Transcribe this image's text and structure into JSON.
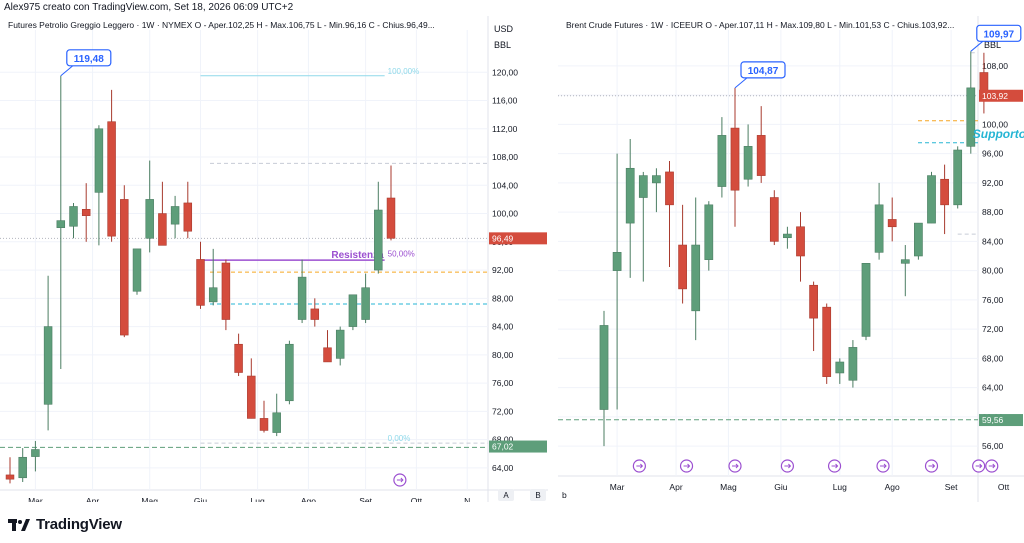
{
  "header": {
    "credit": "Alex975 creato con TradingView.com, Set 18, 2026 06:09 UTC+2"
  },
  "footer": {
    "brand": "TradingView",
    "corner_left": "b",
    "btn_a": "A",
    "btn_b": "B"
  },
  "colors": {
    "up": "#5e9e7a",
    "down": "#d44c3d",
    "resistance": "#9b4fd0",
    "support": "#26b5d4"
  },
  "chart_data": [
    {
      "type": "candlestick",
      "title": "Futures Petrolio Greggio Leggero · 1W · NYMEX",
      "ohlc_label": "O - Aper.102,25  H - Max.106,75  L - Min.96,16  C - Chius.96,49...",
      "currency": "USD",
      "unit": "BBL",
      "ylim": [
        62,
        124
      ],
      "y_ticks": [
        64,
        68,
        72,
        76,
        80,
        84,
        88,
        92,
        96,
        100,
        104,
        108,
        112,
        116,
        120
      ],
      "y_tick_labels": [
        "64,00",
        "68,00",
        "72,00",
        "76,00",
        "80,00",
        "84,00",
        "88,00",
        "92,00",
        "96,00",
        "100,00",
        "104,00",
        "108,00",
        "112,00",
        "116,00",
        "120,00"
      ],
      "x_labels": [
        {
          "i": 2,
          "t": "Mar"
        },
        {
          "i": 6.5,
          "t": "Apr"
        },
        {
          "i": 11,
          "t": "Mag"
        },
        {
          "i": 15,
          "t": "Giu"
        },
        {
          "i": 19.5,
          "t": "Lug"
        },
        {
          "i": 23.5,
          "t": "Ago"
        },
        {
          "i": 28,
          "t": "Set"
        },
        {
          "i": 32,
          "t": "Ott"
        },
        {
          "i": 36,
          "t": "N"
        }
      ],
      "candles": [
        {
          "o": 63.0,
          "h": 65.5,
          "l": 61.8,
          "c": 62.4
        },
        {
          "o": 62.6,
          "h": 66.8,
          "l": 62.0,
          "c": 65.5
        },
        {
          "o": 65.6,
          "h": 67.8,
          "l": 63.5,
          "c": 66.6
        },
        {
          "o": 73.0,
          "h": 91.2,
          "l": 69.3,
          "c": 84.0
        },
        {
          "o": 98.0,
          "h": 119.5,
          "l": 78.0,
          "c": 99.0
        },
        {
          "o": 98.2,
          "h": 101.5,
          "l": 96.5,
          "c": 101.0
        },
        {
          "o": 100.6,
          "h": 104.3,
          "l": 96.0,
          "c": 99.7
        },
        {
          "o": 103.0,
          "h": 112.5,
          "l": 95.5,
          "c": 112.0
        },
        {
          "o": 113.0,
          "h": 117.5,
          "l": 96.0,
          "c": 96.8
        },
        {
          "o": 102.0,
          "h": 104.0,
          "l": 82.5,
          "c": 82.8
        },
        {
          "o": 89.0,
          "h": 95.0,
          "l": 88.5,
          "c": 95.0
        },
        {
          "o": 96.5,
          "h": 107.5,
          "l": 94.5,
          "c": 102.0
        },
        {
          "o": 100.0,
          "h": 104.5,
          "l": 96.0,
          "c": 95.5
        },
        {
          "o": 98.5,
          "h": 102.5,
          "l": 96.5,
          "c": 101.0
        },
        {
          "o": 101.5,
          "h": 104.5,
          "l": 96.5,
          "c": 97.5
        },
        {
          "o": 93.5,
          "h": 96.0,
          "l": 86.5,
          "c": 87.0
        },
        {
          "o": 87.5,
          "h": 95.0,
          "l": 87.0,
          "c": 89.5
        },
        {
          "o": 93.0,
          "h": 93.5,
          "l": 83.5,
          "c": 85.0
        },
        {
          "o": 81.5,
          "h": 83.0,
          "l": 77.0,
          "c": 77.5
        },
        {
          "o": 77.0,
          "h": 79.5,
          "l": 71.0,
          "c": 71.0
        },
        {
          "o": 71.0,
          "h": 73.5,
          "l": 69.0,
          "c": 69.3
        },
        {
          "o": 69.0,
          "h": 74.5,
          "l": 68.5,
          "c": 71.8
        },
        {
          "o": 73.5,
          "h": 82.0,
          "l": 73.0,
          "c": 81.5
        },
        {
          "o": 85.0,
          "h": 93.5,
          "l": 84.5,
          "c": 91.0
        },
        {
          "o": 86.5,
          "h": 88.0,
          "l": 84.0,
          "c": 85.0
        },
        {
          "o": 81.0,
          "h": 83.5,
          "l": 79.0,
          "c": 79.0
        },
        {
          "o": 79.5,
          "h": 84.0,
          "l": 78.5,
          "c": 83.5
        },
        {
          "o": 84.0,
          "h": 88.5,
          "l": 83.5,
          "c": 88.5
        },
        {
          "o": 85.0,
          "h": 91.5,
          "l": 84.5,
          "c": 89.5
        },
        {
          "o": 92.0,
          "h": 104.5,
          "l": 91.5,
          "c": 100.5
        },
        {
          "o": 102.2,
          "h": 106.8,
          "l": 96.2,
          "c": 96.5
        }
      ],
      "annotations": {
        "callout": {
          "i": 4,
          "price": 119.5,
          "text": "119,48"
        },
        "resistance": {
          "i0": 15,
          "i1": 29.5,
          "price": 93.4,
          "text": "Resistenza"
        },
        "fib_100": {
          "price": 119.5,
          "text": "100,00%"
        },
        "fib_50": {
          "price": 93.5,
          "text": "50,00%"
        },
        "fib_0": {
          "price": 67.5,
          "text": "0,00%"
        },
        "support_line": {
          "price": 66.9
        },
        "orange_line": {
          "price": 91.7
        },
        "blue_dash": {
          "price": 87.2
        },
        "gray_line": {
          "price": 107.1
        },
        "last_price_line": {
          "price": 96.49
        }
      },
      "price_labels": [
        {
          "price": 96.49,
          "text": "96,49",
          "color": "#d44c3d"
        },
        {
          "price": 67.02,
          "text": "67,02",
          "color": "#5e9e7a"
        }
      ]
    },
    {
      "type": "candlestick",
      "title": "Brent Crude Futures · 1W · ICEEUR",
      "ohlc_label": "O - Aper.107,11  H - Max.109,80  L - Min.101,53  C - Chius.103,92...",
      "currency": "USD",
      "unit": "BBL",
      "ylim": [
        53,
        111
      ],
      "y_ticks": [
        56,
        60,
        64,
        68,
        72,
        76,
        80,
        84,
        88,
        92,
        96,
        100,
        104,
        108
      ],
      "y_tick_labels": [
        "56,00",
        "60,00",
        "64,00",
        "68,00",
        "72,00",
        "76,00",
        "80,00",
        "84,00",
        "88,00",
        "92,00",
        "96,00",
        "100,00",
        "104,00",
        "108,00"
      ],
      "x_labels": [
        {
          "i": 1,
          "t": "Mar"
        },
        {
          "i": 5.5,
          "t": "Apr"
        },
        {
          "i": 9.5,
          "t": "Mag"
        },
        {
          "i": 13.5,
          "t": "Giu"
        },
        {
          "i": 18,
          "t": "Lug"
        },
        {
          "i": 22,
          "t": "Ago"
        },
        {
          "i": 26.5,
          "t": "Set"
        },
        {
          "i": 30.5,
          "t": "Ott"
        }
      ],
      "candles": [
        {
          "o": 61.0,
          "h": 74.5,
          "l": 56.0,
          "c": 72.5
        },
        {
          "o": 80.0,
          "h": 96.0,
          "l": 61.0,
          "c": 82.5
        },
        {
          "o": 86.5,
          "h": 98.0,
          "l": 79.0,
          "c": 94.0
        },
        {
          "o": 90.0,
          "h": 93.5,
          "l": 78.5,
          "c": 93.0
        },
        {
          "o": 92.0,
          "h": 94.0,
          "l": 88.0,
          "c": 93.0
        },
        {
          "o": 93.5,
          "h": 95.0,
          "l": 80.5,
          "c": 89.0
        },
        {
          "o": 83.5,
          "h": 89.0,
          "l": 75.5,
          "c": 77.5
        },
        {
          "o": 74.5,
          "h": 90.0,
          "l": 70.5,
          "c": 83.5
        },
        {
          "o": 81.5,
          "h": 89.5,
          "l": 80.0,
          "c": 89.0
        },
        {
          "o": 91.5,
          "h": 101.0,
          "l": 90.0,
          "c": 98.5
        },
        {
          "o": 99.5,
          "h": 105.0,
          "l": 86.0,
          "c": 91.0
        },
        {
          "o": 92.5,
          "h": 100.0,
          "l": 91.5,
          "c": 97.0
        },
        {
          "o": 98.5,
          "h": 102.5,
          "l": 92.0,
          "c": 93.0
        },
        {
          "o": 90.0,
          "h": 91.0,
          "l": 83.5,
          "c": 84.0
        },
        {
          "o": 84.5,
          "h": 86.0,
          "l": 83.0,
          "c": 85.0
        },
        {
          "o": 86.0,
          "h": 88.0,
          "l": 78.5,
          "c": 82.0
        },
        {
          "o": 78.0,
          "h": 78.5,
          "l": 69.0,
          "c": 73.5
        },
        {
          "o": 75.0,
          "h": 75.5,
          "l": 64.5,
          "c": 65.5
        },
        {
          "o": 66.0,
          "h": 68.0,
          "l": 64.5,
          "c": 67.5
        },
        {
          "o": 65.0,
          "h": 70.5,
          "l": 64.0,
          "c": 69.5
        },
        {
          "o": 71.0,
          "h": 81.0,
          "l": 70.5,
          "c": 81.0
        },
        {
          "o": 82.5,
          "h": 92.0,
          "l": 81.5,
          "c": 89.0
        },
        {
          "o": 87.0,
          "h": 90.0,
          "l": 84.0,
          "c": 86.0
        },
        {
          "o": 81.0,
          "h": 83.5,
          "l": 76.5,
          "c": 81.5
        },
        {
          "o": 82.0,
          "h": 86.5,
          "l": 81.5,
          "c": 86.5
        },
        {
          "o": 86.5,
          "h": 93.5,
          "l": 86.5,
          "c": 93.0
        },
        {
          "o": 92.5,
          "h": 94.5,
          "l": 85.0,
          "c": 89.0
        },
        {
          "o": 89.0,
          "h": 97.0,
          "l": 88.5,
          "c": 96.5
        },
        {
          "o": 97.0,
          "h": 110.0,
          "l": 96.0,
          "c": 105.0
        },
        {
          "o": 107.1,
          "h": 109.8,
          "l": 101.5,
          "c": 103.9
        }
      ],
      "annotations": {
        "callouts": [
          {
            "i": 10,
            "price": 105.0,
            "text": "104,87"
          },
          {
            "i": 28,
            "price": 110.0,
            "text": "109,97"
          }
        ],
        "support": {
          "i": 28,
          "price": 98.0,
          "text": "Supporto"
        },
        "orange_line": {
          "price": 100.5
        },
        "blue_dash": {
          "price": 97.5
        },
        "gray_top": {
          "price": 109.8
        },
        "gray_low": {
          "price": 85.0
        },
        "green_dash": {
          "price": 59.6
        },
        "last_price_line": {
          "price": 103.92
        }
      },
      "price_labels": [
        {
          "price": 103.92,
          "text": "103,92",
          "color": "#d44c3d"
        },
        {
          "price": 59.56,
          "text": "59,56",
          "color": "#5e9e7a"
        }
      ]
    }
  ]
}
